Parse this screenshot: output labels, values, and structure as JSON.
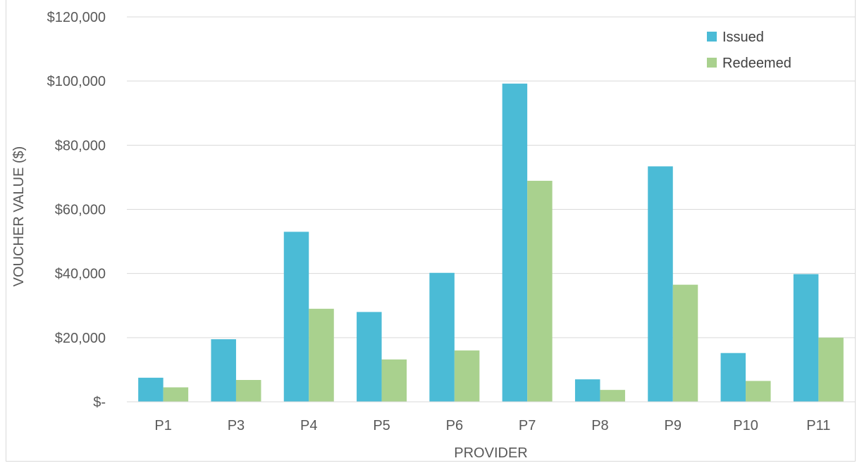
{
  "chart_data": {
    "type": "bar",
    "title": "",
    "xlabel": "PROVIDER",
    "ylabel": "VOUCHER VALUE ($)",
    "categories": [
      "P1",
      "P3",
      "P4",
      "P5",
      "P6",
      "P7",
      "P8",
      "P9",
      "P10",
      "P11"
    ],
    "series": [
      {
        "name": "Issued",
        "color": "#4BBBD6",
        "values": [
          7500,
          19500,
          53000,
          28000,
          40200,
          99200,
          7000,
          73400,
          15200,
          39800
        ]
      },
      {
        "name": "Redeemed",
        "color": "#A9D18E",
        "values": [
          4500,
          6800,
          29000,
          13200,
          16000,
          68900,
          3700,
          36500,
          6500,
          20000
        ]
      }
    ],
    "ylim": [
      0,
      120000
    ],
    "yticks": [
      0,
      20000,
      40000,
      60000,
      80000,
      100000,
      120000
    ],
    "ytick_labels": [
      "$-",
      "$20,000",
      "$40,000",
      "$60,000",
      "$80,000",
      "$100,000",
      "$120,000"
    ],
    "grid": true,
    "legend_position": "top-right"
  }
}
